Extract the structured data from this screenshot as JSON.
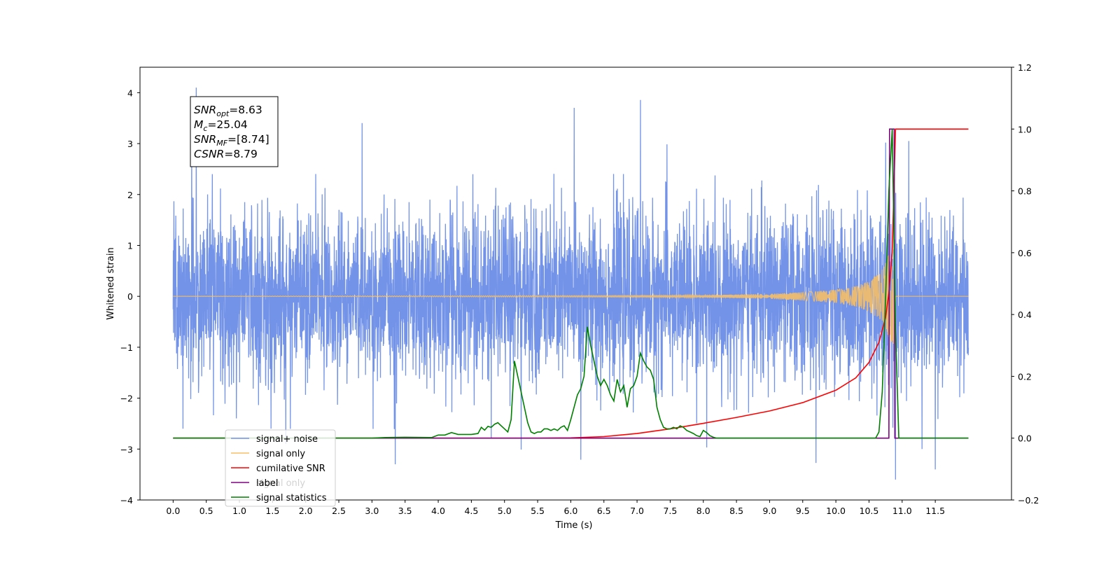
{
  "chart_data": {
    "type": "line",
    "xlabel": "Time (s)",
    "ylabel": "Whitened strain",
    "xlim": [
      -0.5,
      12.65
    ],
    "ylim": [
      -4,
      4.5
    ],
    "y2lim": [
      -0.2,
      1.2
    ],
    "x_ticks": [
      "0.0",
      "0.5",
      "1.0",
      "1.5",
      "2.0",
      "2.5",
      "3.0",
      "3.5",
      "4.0",
      "4.5",
      "5.0",
      "5.5",
      "6.0",
      "6.5",
      "7.0",
      "7.5",
      "8.0",
      "8.5",
      "9.0",
      "9.5",
      "10.0",
      "10.5",
      "11.0",
      "11.5"
    ],
    "y_ticks": [
      "4",
      "3",
      "2",
      "1",
      "0",
      "−1",
      "−2",
      "−3",
      "−4"
    ],
    "y2_ticks": [
      "1.2",
      "1.0",
      "0.8",
      "0.6",
      "0.4",
      "0.2",
      "0.0",
      "−0.2"
    ],
    "legend_position": "lower-left",
    "grid": false,
    "annotation": [
      {
        "base": "SNR",
        "sub": "opt",
        "rest": "=8.63"
      },
      {
        "base": "M",
        "sub": "c",
        "rest": "=25.04"
      },
      {
        "base": "SNR",
        "sub": "MF",
        "rest": "=[8.74]"
      },
      {
        "base": "CSNR",
        "sub": "",
        "rest": "=8.79"
      }
    ],
    "series": [
      {
        "name": "signal+ noise",
        "axis": "left",
        "color": "#7393e8",
        "style": "dense noise, amplitude about ±1.5 with spikes to about ±3.5, x from 0.0 to 12.0",
        "spikes": [
          [
            0.35,
            4.1
          ],
          [
            0.28,
            3.4
          ],
          [
            2.85,
            3.4
          ],
          [
            3.35,
            -3.3
          ],
          [
            5.25,
            -3.0
          ],
          [
            6.05,
            3.7
          ],
          [
            6.15,
            -3.2
          ],
          [
            7.05,
            3.85
          ],
          [
            9.7,
            -3.35
          ],
          [
            10.75,
            3.35
          ],
          [
            10.9,
            -3.6
          ],
          [
            11.3,
            -3.0
          ],
          [
            11.5,
            -3.4
          ],
          [
            1.7,
            -2.9
          ],
          [
            4.8,
            -2.8
          ],
          [
            7.45,
            3.0
          ],
          [
            8.05,
            -2.95
          ],
          [
            11.1,
            3.05
          ]
        ]
      },
      {
        "name": "signal only",
        "axis": "left",
        "color": "#f5bf66",
        "x": [
          0,
          8.0,
          9.0,
          9.5,
          10.0,
          10.3,
          10.5,
          10.65,
          10.75,
          10.82,
          10.87,
          10.9,
          12.0
        ],
        "amplitude": [
          0.0,
          0.02,
          0.05,
          0.08,
          0.13,
          0.2,
          0.3,
          0.45,
          0.65,
          0.9,
          1.0,
          0.0,
          0.0
        ]
      },
      {
        "name": "cumilative SNR",
        "axis": "right",
        "color": "#ff0000",
        "x": [
          0,
          5.5,
          6.0,
          6.5,
          7.0,
          7.5,
          8.0,
          8.5,
          9.0,
          9.5,
          10.0,
          10.3,
          10.5,
          10.65,
          10.75,
          10.8,
          10.85,
          10.9,
          11.0,
          12.0
        ],
        "values": [
          0.0,
          0.0,
          0.001,
          0.005,
          0.015,
          0.03,
          0.048,
          0.067,
          0.088,
          0.115,
          0.155,
          0.195,
          0.245,
          0.31,
          0.39,
          0.47,
          0.6,
          1.0,
          1.0,
          1.0
        ]
      },
      {
        "name": "label",
        "axis": "right",
        "color": "#800080",
        "x": [
          0,
          10.8,
          10.81,
          10.88,
          10.89,
          12.0
        ],
        "values": [
          0,
          0,
          1,
          1,
          0,
          0
        ]
      },
      {
        "name": "signal only",
        "axis": "right",
        "color": "#008000",
        "legend_hidden": true
      },
      {
        "name": "signal statistics",
        "axis": "right",
        "color": "#008000",
        "x": [
          0,
          3.0,
          3.2,
          3.5,
          3.9,
          4.0,
          4.1,
          4.2,
          4.3,
          4.4,
          4.5,
          4.6,
          4.65,
          4.7,
          4.75,
          4.8,
          4.85,
          4.9,
          4.95,
          5.0,
          5.05,
          5.1,
          5.15,
          5.2,
          5.25,
          5.3,
          5.35,
          5.4,
          5.45,
          5.5,
          5.55,
          5.6,
          5.65,
          5.7,
          5.75,
          5.8,
          5.85,
          5.9,
          5.95,
          6.0,
          6.05,
          6.1,
          6.15,
          6.2,
          6.25,
          6.3,
          6.35,
          6.4,
          6.45,
          6.5,
          6.55,
          6.6,
          6.65,
          6.7,
          6.75,
          6.8,
          6.85,
          6.9,
          6.95,
          7.0,
          7.05,
          7.1,
          7.15,
          7.2,
          7.25,
          7.3,
          7.35,
          7.4,
          7.45,
          7.5,
          7.55,
          7.6,
          7.65,
          7.7,
          7.75,
          7.8,
          7.85,
          7.9,
          7.95,
          8.0,
          8.05,
          8.1,
          8.15,
          8.2,
          8.25,
          10.6,
          10.65,
          10.7,
          10.75,
          10.8,
          10.85,
          10.9,
          10.95,
          11.0,
          12.0
        ],
        "values": [
          0.0,
          0.0,
          0.002,
          0.003,
          0.002,
          0.01,
          0.01,
          0.018,
          0.012,
          0.012,
          0.012,
          0.015,
          0.035,
          0.026,
          0.038,
          0.035,
          0.045,
          0.05,
          0.04,
          0.03,
          0.02,
          0.06,
          0.25,
          0.2,
          0.15,
          0.1,
          0.05,
          0.02,
          0.015,
          0.02,
          0.02,
          0.03,
          0.03,
          0.025,
          0.03,
          0.025,
          0.035,
          0.04,
          0.025,
          0.06,
          0.1,
          0.14,
          0.16,
          0.2,
          0.36,
          0.3,
          0.25,
          0.2,
          0.17,
          0.19,
          0.17,
          0.14,
          0.12,
          0.19,
          0.15,
          0.17,
          0.1,
          0.16,
          0.17,
          0.2,
          0.275,
          0.25,
          0.23,
          0.22,
          0.19,
          0.1,
          0.06,
          0.035,
          0.03,
          0.03,
          0.035,
          0.03,
          0.04,
          0.035,
          0.025,
          0.02,
          0.015,
          0.008,
          0.005,
          0.025,
          0.018,
          0.008,
          0.003,
          0.0,
          0.0,
          0.0,
          0.02,
          0.15,
          0.45,
          0.8,
          1.0,
          0.35,
          0.0,
          0.0,
          0.0
        ]
      }
    ],
    "legend": [
      {
        "label": "signal+ noise",
        "color": "#7393e8"
      },
      {
        "label": "signal only",
        "color": "#f5bf66"
      },
      {
        "label": "cumilative SNR",
        "color": "#ff0000"
      },
      {
        "label": "label",
        "color": "#800080",
        "overlay_label": "signal only"
      },
      {
        "label": "signal statistics",
        "color": "#008000"
      }
    ]
  }
}
